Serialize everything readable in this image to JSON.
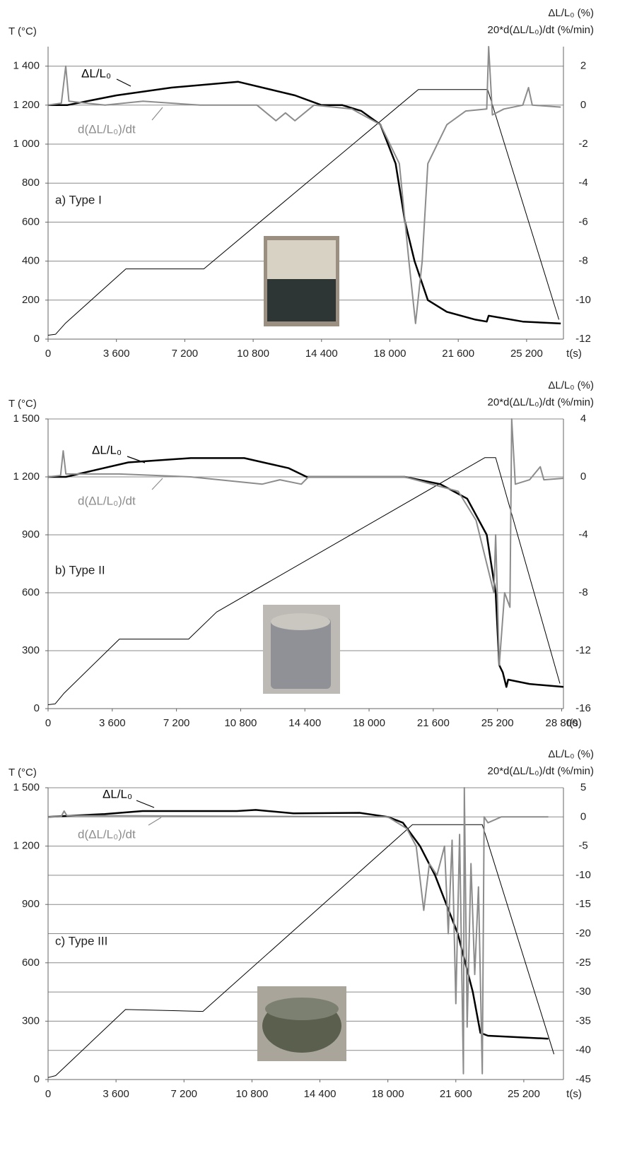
{
  "chart_data": [
    {
      "type": "line",
      "panel_label": "a) Type I",
      "y_label": "T (°C)",
      "y2_label": [
        "ΔL/L₀ (%)",
        "20*d(ΔL/L₀)/dt (%/min)"
      ],
      "x_label": "t(s)",
      "grid": true,
      "xlim": [
        0,
        27140
      ],
      "ylim": [
        0,
        1500
      ],
      "y2lim": [
        -12,
        3
      ],
      "xticks": [
        0,
        {
          "value": 3600,
          "label": "3 600"
        },
        {
          "value": 7200,
          "label": "7 200"
        },
        {
          "value": 10800,
          "label": "10 800"
        },
        {
          "value": 14400,
          "label": "14 400"
        },
        {
          "value": 18000,
          "label": "18 000"
        },
        {
          "value": 21600,
          "label": "21 600"
        },
        {
          "value": 25200,
          "label": "25 200"
        }
      ],
      "yticks": [
        0,
        200,
        400,
        600,
        800,
        {
          "value": 1000,
          "label": "1 000"
        },
        {
          "value": 1200,
          "label": "1 200"
        },
        {
          "value": 1400,
          "label": "1 400"
        }
      ],
      "y2ticks": [
        -12,
        -10,
        -8,
        -6,
        -4,
        -2,
        0,
        2
      ],
      "series": [
        {
          "color": "#000000",
          "x": [
            0,
            400,
            900,
            4100,
            8200,
            19500,
            23150,
            26900
          ],
          "values": [
            20,
            25,
            80,
            360,
            360,
            1280,
            1280,
            100
          ]
        },
        {
          "name": "ΔL/L₀",
          "color": "#000000",
          "axis": "y2",
          "x": [
            0,
            1000,
            3600,
            6500,
            10000,
            13000,
            14400,
            15500,
            16500,
            17500,
            18300,
            18800,
            19300,
            20000,
            21000,
            22500,
            23100,
            23200,
            25000,
            27000
          ],
          "values": [
            0,
            0,
            0.5,
            0.9,
            1.2,
            0.5,
            0,
            0,
            -0.3,
            -1,
            -3,
            -6,
            -8,
            -10,
            -10.6,
            -11,
            -11.1,
            -10.8,
            -11.1,
            -11.2
          ]
        },
        {
          "name": "d(ΔL/L₀)/dt",
          "color": "#8c8c8c",
          "axis": "y2",
          "x": [
            0,
            700,
            930,
            1100,
            3000,
            5000,
            8000,
            11000,
            12000,
            12500,
            13000,
            14000,
            16000,
            17500,
            18500,
            19000,
            19350,
            19700,
            20000,
            21000,
            22000,
            23100,
            23200,
            23400,
            24000,
            25000,
            25300,
            25500,
            27000
          ],
          "values": [
            0,
            0.1,
            2,
            0.2,
            0,
            0.2,
            0,
            0,
            -0.8,
            -0.4,
            -0.8,
            0,
            -0.2,
            -1,
            -3,
            -8,
            -11.2,
            -8,
            -3,
            -1,
            -0.3,
            -0.2,
            3,
            -0.5,
            -0.2,
            0,
            0.9,
            0,
            -0.1
          ]
        }
      ]
    },
    {
      "type": "line",
      "panel_label": "b) Type II",
      "y_label": "T (°C)",
      "y2_label": [
        "ΔL/L₀ (%)",
        "20*d(ΔL/L₀)/dt (%/min)"
      ],
      "x_label": "t(s)",
      "grid": true,
      "xlim": [
        0,
        28900
      ],
      "ylim": [
        0,
        1500
      ],
      "y2lim": [
        -16,
        4
      ],
      "xticks": [
        0,
        {
          "value": 3600,
          "label": "3 600"
        },
        {
          "value": 7200,
          "label": "7 200"
        },
        {
          "value": 10800,
          "label": "10 800"
        },
        {
          "value": 14400,
          "label": "14 400"
        },
        {
          "value": 18000,
          "label": "18 000"
        },
        {
          "value": 21600,
          "label": "21 600"
        },
        {
          "value": 25200,
          "label": "25 200"
        },
        {
          "value": 28800,
          "label": "28 800"
        }
      ],
      "yticks": [
        0,
        300,
        600,
        900,
        {
          "value": 1200,
          "label": "1 200"
        },
        {
          "value": 1500,
          "label": "1 500"
        }
      ],
      "y2ticks": [
        -16,
        -12,
        -8,
        -4,
        0,
        4
      ],
      "series": [
        {
          "color": "#000000",
          "x": [
            0,
            400,
            900,
            4000,
            7880,
            9450,
            24500,
            25100,
            28700
          ],
          "values": [
            20,
            25,
            80,
            360,
            360,
            500,
            1300,
            1300,
            130
          ]
        },
        {
          "name": "ΔL/L₀",
          "color": "#000000",
          "axis": "y2",
          "x": [
            0,
            1000,
            4500,
            8000,
            11000,
            13500,
            14500,
            20000,
            22000,
            23500,
            24600,
            25100,
            25300,
            25500,
            25700,
            25800,
            27000,
            28900
          ],
          "values": [
            0,
            0,
            1,
            1.3,
            1.3,
            0.6,
            0,
            0,
            -0.5,
            -1.5,
            -4,
            -8,
            -13,
            -13.5,
            -14.5,
            -14,
            -14.3,
            -14.5
          ]
        },
        {
          "name": "d(ΔL/L₀)/dt",
          "color": "#8c8c8c",
          "axis": "y2",
          "x": [
            0,
            700,
            850,
            1000,
            4000,
            8000,
            12000,
            13000,
            14200,
            14600,
            20000,
            23000,
            24000,
            25000,
            25100,
            25300,
            25600,
            25900,
            26000,
            26200,
            27000,
            27600,
            27800,
            28900
          ],
          "values": [
            0,
            0.1,
            1.8,
            0.2,
            0.2,
            0,
            -0.5,
            -0.2,
            -0.5,
            0,
            0,
            -1,
            -3,
            -8,
            -4,
            -13,
            -8,
            -9,
            4,
            -0.5,
            -0.2,
            0.7,
            -0.2,
            -0.1
          ]
        }
      ]
    },
    {
      "type": "line",
      "panel_label": "c) Type III",
      "y_label": "T (°C)",
      "y2_label": [
        "ΔL/L₀ (%)",
        "20*d(ΔL/L₀)/dt (%/min)"
      ],
      "x_label": "t(s)",
      "grid": true,
      "xlim": [
        0,
        27300
      ],
      "ylim": [
        0,
        1500
      ],
      "y2lim": [
        -45,
        5
      ],
      "xticks": [
        0,
        {
          "value": 3600,
          "label": "3 600"
        },
        {
          "value": 7200,
          "label": "7 200"
        },
        {
          "value": 10800,
          "label": "10 800"
        },
        {
          "value": 14400,
          "label": "14 400"
        },
        {
          "value": 18000,
          "label": "18 000"
        },
        {
          "value": 21600,
          "label": "21 600"
        },
        {
          "value": 25200,
          "label": "25 200"
        }
      ],
      "yticks": [
        0,
        300,
        600,
        900,
        {
          "value": 1200,
          "label": "1 200"
        },
        {
          "value": 1500,
          "label": "1 500"
        }
      ],
      "y2ticks": [
        -45,
        -40,
        -35,
        -30,
        -25,
        -20,
        -15,
        -10,
        -5,
        0,
        5
      ],
      "series": [
        {
          "color": "#000000",
          "x": [
            0,
            400,
            4100,
            8200,
            19300,
            23000,
            26800
          ],
          "values": [
            10,
            20,
            360,
            350,
            1310,
            1310,
            130
          ]
        },
        {
          "name": "ΔL/L₀",
          "color": "#000000",
          "axis": "y2",
          "x": [
            0,
            3000,
            5000,
            10000,
            11000,
            13000,
            16500,
            18000,
            18800,
            19700,
            20500,
            21700,
            22500,
            22900,
            23300,
            26500
          ],
          "values": [
            0,
            0.5,
            1,
            1,
            1.2,
            0.6,
            0.7,
            0,
            -1,
            -5,
            -10,
            -20,
            -30,
            -37,
            -37.5,
            -38
          ]
        },
        {
          "name": "d(ΔL/L₀)/dt",
          "color": "#8c8c8c",
          "axis": "y2",
          "x": [
            0,
            700,
            850,
            1000,
            4000,
            18000,
            19000,
            19500,
            19900,
            20200,
            20600,
            21000,
            21200,
            21400,
            21600,
            21800,
            22000,
            22050,
            22200,
            22400,
            22600,
            22800,
            23000,
            23100,
            23300,
            24000,
            26500
          ],
          "values": [
            0,
            0.1,
            1,
            0.2,
            0.2,
            0,
            -2,
            -5,
            -16,
            -8,
            -10,
            -5,
            -20,
            -4,
            -32,
            -3,
            -44,
            5,
            -36,
            -8,
            -27,
            -12,
            -44,
            0,
            -1,
            0,
            0
          ]
        }
      ]
    }
  ]
}
